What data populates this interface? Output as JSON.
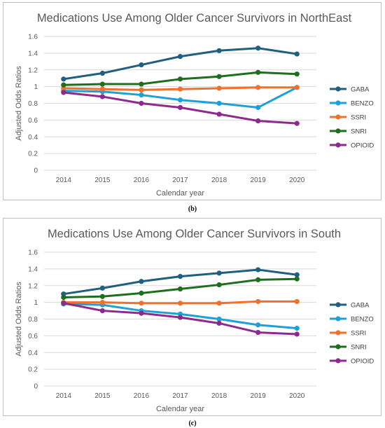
{
  "captions": {
    "b": "(b)",
    "c": "(c)"
  },
  "chart_data": [
    {
      "type": "line",
      "title": "Medications Use Among Older Cancer Survivors in NorthEast",
      "xlabel": "Calendar year",
      "ylabel": "Adjusted Odds Ratios",
      "ylim": [
        0,
        1.6
      ],
      "yticks": [
        "0",
        "0.2",
        "0.4",
        "0.6",
        "0.8",
        "1",
        "1.2",
        "1.4",
        "1.6"
      ],
      "categories": [
        "2014",
        "2015",
        "2016",
        "2017",
        "2018",
        "2019",
        "2020"
      ],
      "grid": true,
      "legend": "right",
      "series": [
        {
          "name": "GABA",
          "color": "#1f5f7f",
          "values": [
            1.09,
            1.16,
            1.26,
            1.36,
            1.43,
            1.46,
            1.39
          ]
        },
        {
          "name": "BENZO",
          "color": "#1da1d8",
          "values": [
            0.95,
            0.94,
            0.9,
            0.84,
            0.8,
            0.75,
            0.99
          ]
        },
        {
          "name": "SSRI",
          "color": "#f0702e",
          "values": [
            0.98,
            0.97,
            0.96,
            0.97,
            0.98,
            0.99,
            0.99
          ]
        },
        {
          "name": "SNRI",
          "color": "#1e6e1e",
          "values": [
            1.02,
            1.03,
            1.03,
            1.09,
            1.12,
            1.17,
            1.15
          ]
        },
        {
          "name": "OPIOID",
          "color": "#8e2a8e",
          "values": [
            0.93,
            0.88,
            0.8,
            0.75,
            0.67,
            0.59,
            0.56
          ]
        }
      ]
    },
    {
      "type": "line",
      "title": "Medications Use Among Older Cancer Survivors in South",
      "xlabel": "Calendar year",
      "ylabel": "Adjusted Odds Ratios",
      "ylim": [
        0,
        1.6
      ],
      "yticks": [
        "0",
        "0.2",
        "0.4",
        "0.6",
        "0.8",
        "1",
        "1.2",
        "1.4",
        "1.6"
      ],
      "categories": [
        "2014",
        "2015",
        "2016",
        "2017",
        "2018",
        "2019",
        "2020"
      ],
      "grid": true,
      "legend": "right",
      "series": [
        {
          "name": "GABA",
          "color": "#1f5f7f",
          "values": [
            1.1,
            1.17,
            1.25,
            1.31,
            1.35,
            1.39,
            1.33
          ]
        },
        {
          "name": "BENZO",
          "color": "#1da1d8",
          "values": [
            0.98,
            0.97,
            0.9,
            0.86,
            0.8,
            0.73,
            0.69
          ]
        },
        {
          "name": "SSRI",
          "color": "#f0702e",
          "values": [
            1.0,
            1.0,
            0.99,
            0.99,
            0.99,
            1.01,
            1.01
          ]
        },
        {
          "name": "SNRI",
          "color": "#1e6e1e",
          "values": [
            1.06,
            1.07,
            1.11,
            1.16,
            1.21,
            1.27,
            1.28
          ]
        },
        {
          "name": "OPIOID",
          "color": "#8e2a8e",
          "values": [
            0.99,
            0.9,
            0.87,
            0.82,
            0.75,
            0.64,
            0.62
          ]
        }
      ]
    }
  ]
}
